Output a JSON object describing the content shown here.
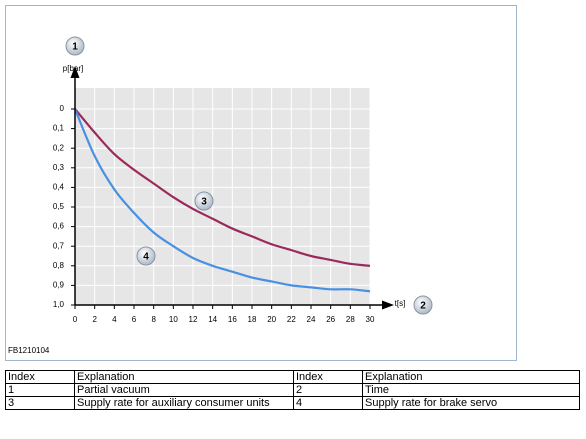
{
  "chart_data": {
    "type": "line",
    "y_label": "p[bar]",
    "x_label": "t[s]",
    "y_callout": "1",
    "x_callout": "2",
    "x": [
      0,
      2,
      4,
      6,
      8,
      10,
      12,
      14,
      16,
      18,
      20,
      22,
      24,
      26,
      28,
      30
    ],
    "xlim": [
      0,
      30
    ],
    "xticks": [
      0,
      2,
      4,
      6,
      8,
      10,
      12,
      14,
      16,
      18,
      20,
      22,
      24,
      26,
      28,
      30
    ],
    "ylim": [
      1,
      0
    ],
    "yticks": [
      0,
      {
        "value": 0.1,
        "label": "0,1"
      },
      {
        "value": 0.2,
        "label": "0,2"
      },
      {
        "value": 0.3,
        "label": "0,3"
      },
      {
        "value": 0.4,
        "label": "0,4"
      },
      {
        "value": 0.5,
        "label": "0,5"
      },
      {
        "value": 0.6,
        "label": "0,6"
      },
      {
        "value": 0.7,
        "label": "0,7"
      },
      {
        "value": 0.8,
        "label": "0,8"
      },
      {
        "value": 0.9,
        "label": "0,9"
      },
      {
        "value": 1,
        "label": "1,0"
      }
    ],
    "grid": true,
    "series": [
      {
        "callout": "3",
        "color": "#9b2a5a",
        "values": [
          0,
          0.12,
          0.23,
          0.31,
          0.38,
          0.45,
          0.51,
          0.56,
          0.61,
          0.65,
          0.69,
          0.72,
          0.75,
          0.77,
          0.79,
          0.8
        ]
      },
      {
        "callout": "4",
        "color": "#4a90e2",
        "values": [
          0,
          0.24,
          0.41,
          0.53,
          0.63,
          0.7,
          0.76,
          0.8,
          0.83,
          0.86,
          0.88,
          0.9,
          0.91,
          0.92,
          0.92,
          0.93
        ]
      }
    ]
  },
  "figure_code": "FB1210104",
  "table": {
    "header": [
      "Index",
      "Explanation",
      "Index",
      "Explanation"
    ],
    "rows": [
      [
        "1",
        "Partial vacuum",
        "2",
        "Time"
      ],
      [
        "3",
        "Supply rate for auxiliary consumer units",
        "4",
        "Supply rate for brake servo"
      ]
    ]
  }
}
